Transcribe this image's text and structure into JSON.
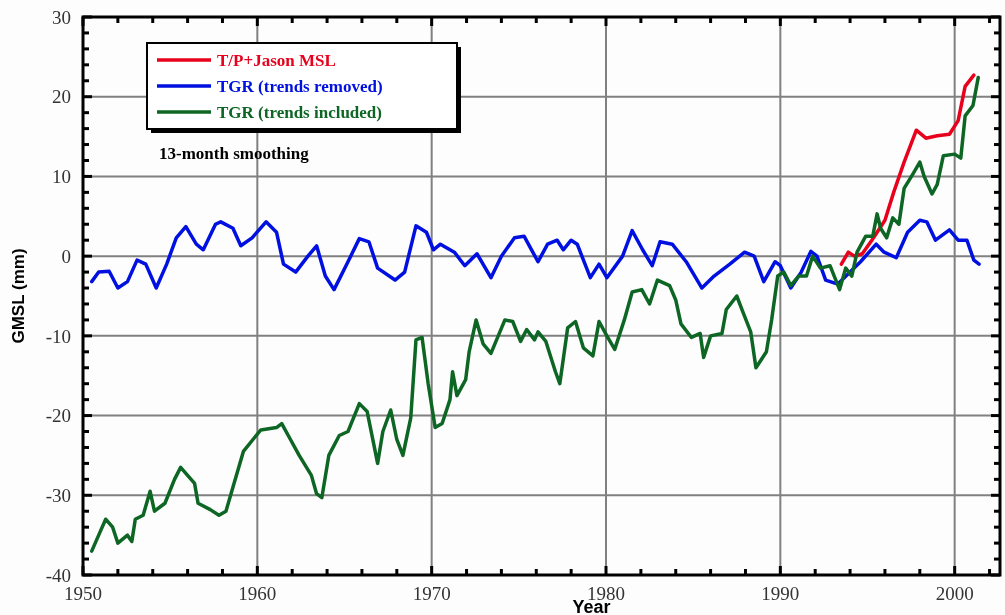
{
  "chart_data": {
    "type": "line",
    "xlabel": "Year",
    "ylabel": "GMSL (mm)",
    "annotations": [
      "13-month smoothing"
    ],
    "xlim": [
      1950,
      2002.6
    ],
    "ylim": [
      -40,
      30
    ],
    "xticks": [
      1950,
      {
        "value": 1952,
        "label": null
      },
      {
        "value": 1954,
        "label": null
      },
      {
        "value": 1956,
        "label": null
      },
      {
        "value": 1958,
        "label": null
      },
      1960,
      {
        "value": 1962,
        "label": null
      },
      {
        "value": 1964,
        "label": null
      },
      {
        "value": 1966,
        "label": null
      },
      {
        "value": 1968,
        "label": null
      },
      1970,
      {
        "value": 1972,
        "label": null
      },
      {
        "value": 1974,
        "label": null
      },
      {
        "value": 1976,
        "label": null
      },
      {
        "value": 1978,
        "label": null
      },
      1980,
      {
        "value": 1982,
        "label": null
      },
      {
        "value": 1984,
        "label": null
      },
      {
        "value": 1986,
        "label": null
      },
      {
        "value": 1988,
        "label": null
      },
      1990,
      {
        "value": 1992,
        "label": null
      },
      {
        "value": 1994,
        "label": null
      },
      {
        "value": 1996,
        "label": null
      },
      {
        "value": 1998,
        "label": null
      },
      2000,
      {
        "value": 2002,
        "label": null
      }
    ],
    "yticks": [
      -40,
      {
        "value": -38,
        "label": null
      },
      {
        "value": -36,
        "label": null
      },
      {
        "value": -34,
        "label": null
      },
      {
        "value": -32,
        "label": null
      },
      -30,
      {
        "value": -28,
        "label": null
      },
      {
        "value": -26,
        "label": null
      },
      {
        "value": -24,
        "label": null
      },
      {
        "value": -22,
        "label": null
      },
      -20,
      {
        "value": -18,
        "label": null
      },
      {
        "value": -16,
        "label": null
      },
      {
        "value": -14,
        "label": null
      },
      {
        "value": -12,
        "label": null
      },
      -10,
      {
        "value": -8,
        "label": null
      },
      {
        "value": -6,
        "label": null
      },
      {
        "value": -4,
        "label": null
      },
      {
        "value": -2,
        "label": null
      },
      0,
      {
        "value": 2,
        "label": null
      },
      {
        "value": 4,
        "label": null
      },
      {
        "value": 6,
        "label": null
      },
      {
        "value": 8,
        "label": null
      },
      10,
      {
        "value": 12,
        "label": null
      },
      {
        "value": 14,
        "label": null
      },
      {
        "value": 16,
        "label": null
      },
      {
        "value": 18,
        "label": null
      },
      20,
      {
        "value": 22,
        "label": null
      },
      {
        "value": 24,
        "label": null
      },
      {
        "value": 26,
        "label": null
      },
      {
        "value": 28,
        "label": null
      },
      30
    ],
    "grid": true,
    "legend": "top left",
    "line_style": "solid",
    "series": [
      {
        "name": "T/P+Jason MSL",
        "color": "#e8001c",
        "x": [
          1993.5,
          1993.9,
          1994.25,
          1994.7,
          1995.25,
          1996,
          1996.5,
          1997.1,
          1997.8,
          1998.35,
          1999,
          1999.7,
          2000.2,
          2000.6,
          2001.1
        ],
        "values": [
          -1,
          0.5,
          0,
          0.3,
          2,
          4.5,
          8,
          11.8,
          15.8,
          14.8,
          15.1,
          15.3,
          17,
          21.3,
          22.7
        ]
      },
      {
        "name": "TGR (trends removed)",
        "color": "#0010e0",
        "x": [
          1950.5,
          1950.9,
          1951.5,
          1952,
          1952.55,
          1953.1,
          1953.6,
          1954.2,
          1954.8,
          1955.35,
          1955.9,
          1956.5,
          1956.9,
          1957.6,
          1957.9,
          1958.6,
          1959.05,
          1959.7,
          1960.5,
          1961.1,
          1961.5,
          1962.2,
          1962.9,
          1963.4,
          1963.9,
          1964.4,
          1965.2,
          1965.85,
          1966.4,
          1966.9,
          1967.9,
          1968.45,
          1969.1,
          1969.7,
          1970.1,
          1970.5,
          1971.3,
          1971.9,
          1972.6,
          1973.4,
          1974,
          1974.75,
          1975.3,
          1976.1,
          1976.65,
          1977.2,
          1977.55,
          1978,
          1978.35,
          1979.1,
          1979.6,
          1980.05,
          1980.95,
          1981.5,
          1982.1,
          1982.65,
          1983.1,
          1983.8,
          1984.6,
          1985.5,
          1986.2,
          1987.1,
          1987.95,
          1988.5,
          1989.05,
          1989.7,
          1990,
          1990.6,
          1991.2,
          1991.75,
          1992.1,
          1992.6,
          1993.3,
          1994,
          1994.6,
          1995.5,
          1995.95,
          1996.65,
          1997.3,
          1998,
          1998.4,
          1998.9,
          1999.7,
          2000.2,
          2000.7,
          2001.1,
          2001.4
        ],
        "values": [
          -3.2,
          -2,
          -1.9,
          -4,
          -3.2,
          -0.5,
          -1,
          -4,
          -1,
          2.3,
          3.7,
          1.5,
          0.8,
          4,
          4.3,
          3.5,
          1.3,
          2.3,
          4.3,
          3,
          -1,
          -2,
          0,
          1.3,
          -2.5,
          -4.2,
          -0.7,
          2.2,
          1.8,
          -1.5,
          -3,
          -2,
          3.8,
          3,
          0.8,
          1.5,
          0.5,
          -1.2,
          0.3,
          -2.7,
          0,
          2.3,
          2.5,
          -0.7,
          1.5,
          2,
          0.8,
          2,
          1.5,
          -2.7,
          -1,
          -2.7,
          0,
          3.2,
          0.8,
          -1.2,
          1.8,
          1.5,
          -0.7,
          -4,
          -2.5,
          -1,
          0.5,
          0,
          -3.2,
          -0.7,
          -1.2,
          -4,
          -2,
          0.6,
          0,
          -3,
          -3.5,
          -2,
          -0.7,
          1.5,
          0.5,
          -0.2,
          3,
          4.5,
          4.3,
          2,
          3.3,
          2,
          2,
          -0.5,
          -1
        ]
      },
      {
        "name": "TGR (trends included)",
        "color": "#0d6624",
        "x": [
          1950.5,
          1950.9,
          1951.3,
          1951.7,
          1952,
          1952.55,
          1952.8,
          1953,
          1953.45,
          1953.85,
          1954.1,
          1954.7,
          1955.25,
          1955.6,
          1956.4,
          1956.6,
          1957.3,
          1957.8,
          1958.2,
          1958.6,
          1959.2,
          1959.75,
          1960.2,
          1961.1,
          1961.4,
          1961.9,
          1962.4,
          1963.1,
          1963.4,
          1963.7,
          1964.1,
          1964.7,
          1965.2,
          1965.85,
          1966.3,
          1966.9,
          1967.2,
          1967.65,
          1968,
          1968.35,
          1968.8,
          1969.1,
          1969.45,
          1969.8,
          1970.2,
          1970.6,
          1971.05,
          1971.2,
          1971.45,
          1971.95,
          1972.15,
          1972.55,
          1972.95,
          1973.4,
          1974.2,
          1974.65,
          1975.1,
          1975.45,
          1975.9,
          1976.1,
          1976.55,
          1977.1,
          1977.35,
          1977.8,
          1978.25,
          1978.7,
          1979.25,
          1979.6,
          1980.05,
          1980.5,
          1981.05,
          1981.5,
          1982.05,
          1982.5,
          1982.95,
          1983.65,
          1984,
          1984.3,
          1984.9,
          1985.4,
          1985.6,
          1986,
          1986.65,
          1986.9,
          1987.5,
          1987.85,
          1988.3,
          1988.6,
          1989.2,
          1989.5,
          1989.85,
          1990.2,
          1990.6,
          1991.05,
          1991.5,
          1991.85,
          1992.3,
          1992.85,
          1993.4,
          1993.75,
          1994.1,
          1994.4,
          1994.9,
          1995.3,
          1995.55,
          1995.75,
          1996.1,
          1996.45,
          1996.8,
          1997.1,
          1997.6,
          1998,
          1998.25,
          1998.7,
          1999,
          1999.35,
          2000,
          2000.35,
          2000.6,
          2001.05,
          2001.35
        ],
        "values": [
          -37,
          -35,
          -33,
          -34,
          -36,
          -35,
          -35.8,
          -33,
          -32.5,
          -29.5,
          -32,
          -31,
          -28,
          -26.5,
          -28.5,
          -31,
          -31.8,
          -32.5,
          -32,
          -29,
          -24.5,
          -23,
          -21.8,
          -21.5,
          -21,
          -23,
          -25,
          -27.5,
          -29.8,
          -30.3,
          -25,
          -22.5,
          -22,
          -18.5,
          -19.5,
          -26,
          -22,
          -19.3,
          -23,
          -25,
          -20.3,
          -10.5,
          -10.2,
          -16,
          -21.5,
          -21,
          -18,
          -14.5,
          -17.5,
          -15.5,
          -12,
          -8,
          -11,
          -12.2,
          -8,
          -8.2,
          -10.7,
          -9.2,
          -10.5,
          -9.5,
          -10.7,
          -14.5,
          -16,
          -9,
          -8.2,
          -11.5,
          -12.5,
          -8.2,
          -10,
          -11.7,
          -8,
          -4.5,
          -4.2,
          -6,
          -3,
          -3.7,
          -5.5,
          -8.5,
          -10.2,
          -9.7,
          -12.7,
          -10,
          -9.7,
          -6.7,
          -5,
          -7,
          -9.5,
          -14,
          -12,
          -8,
          -2.5,
          -2,
          -3.7,
          -2.5,
          -2.5,
          0,
          -1.5,
          -1.2,
          -4.2,
          -1.5,
          -2.5,
          0.5,
          2.5,
          2.5,
          5.3,
          3.5,
          2.3,
          4.8,
          4,
          8.5,
          10.3,
          11.8,
          10,
          7.8,
          9,
          12.6,
          12.8,
          12.3,
          17.6,
          18.9,
          22.4
        ]
      }
    ]
  }
}
